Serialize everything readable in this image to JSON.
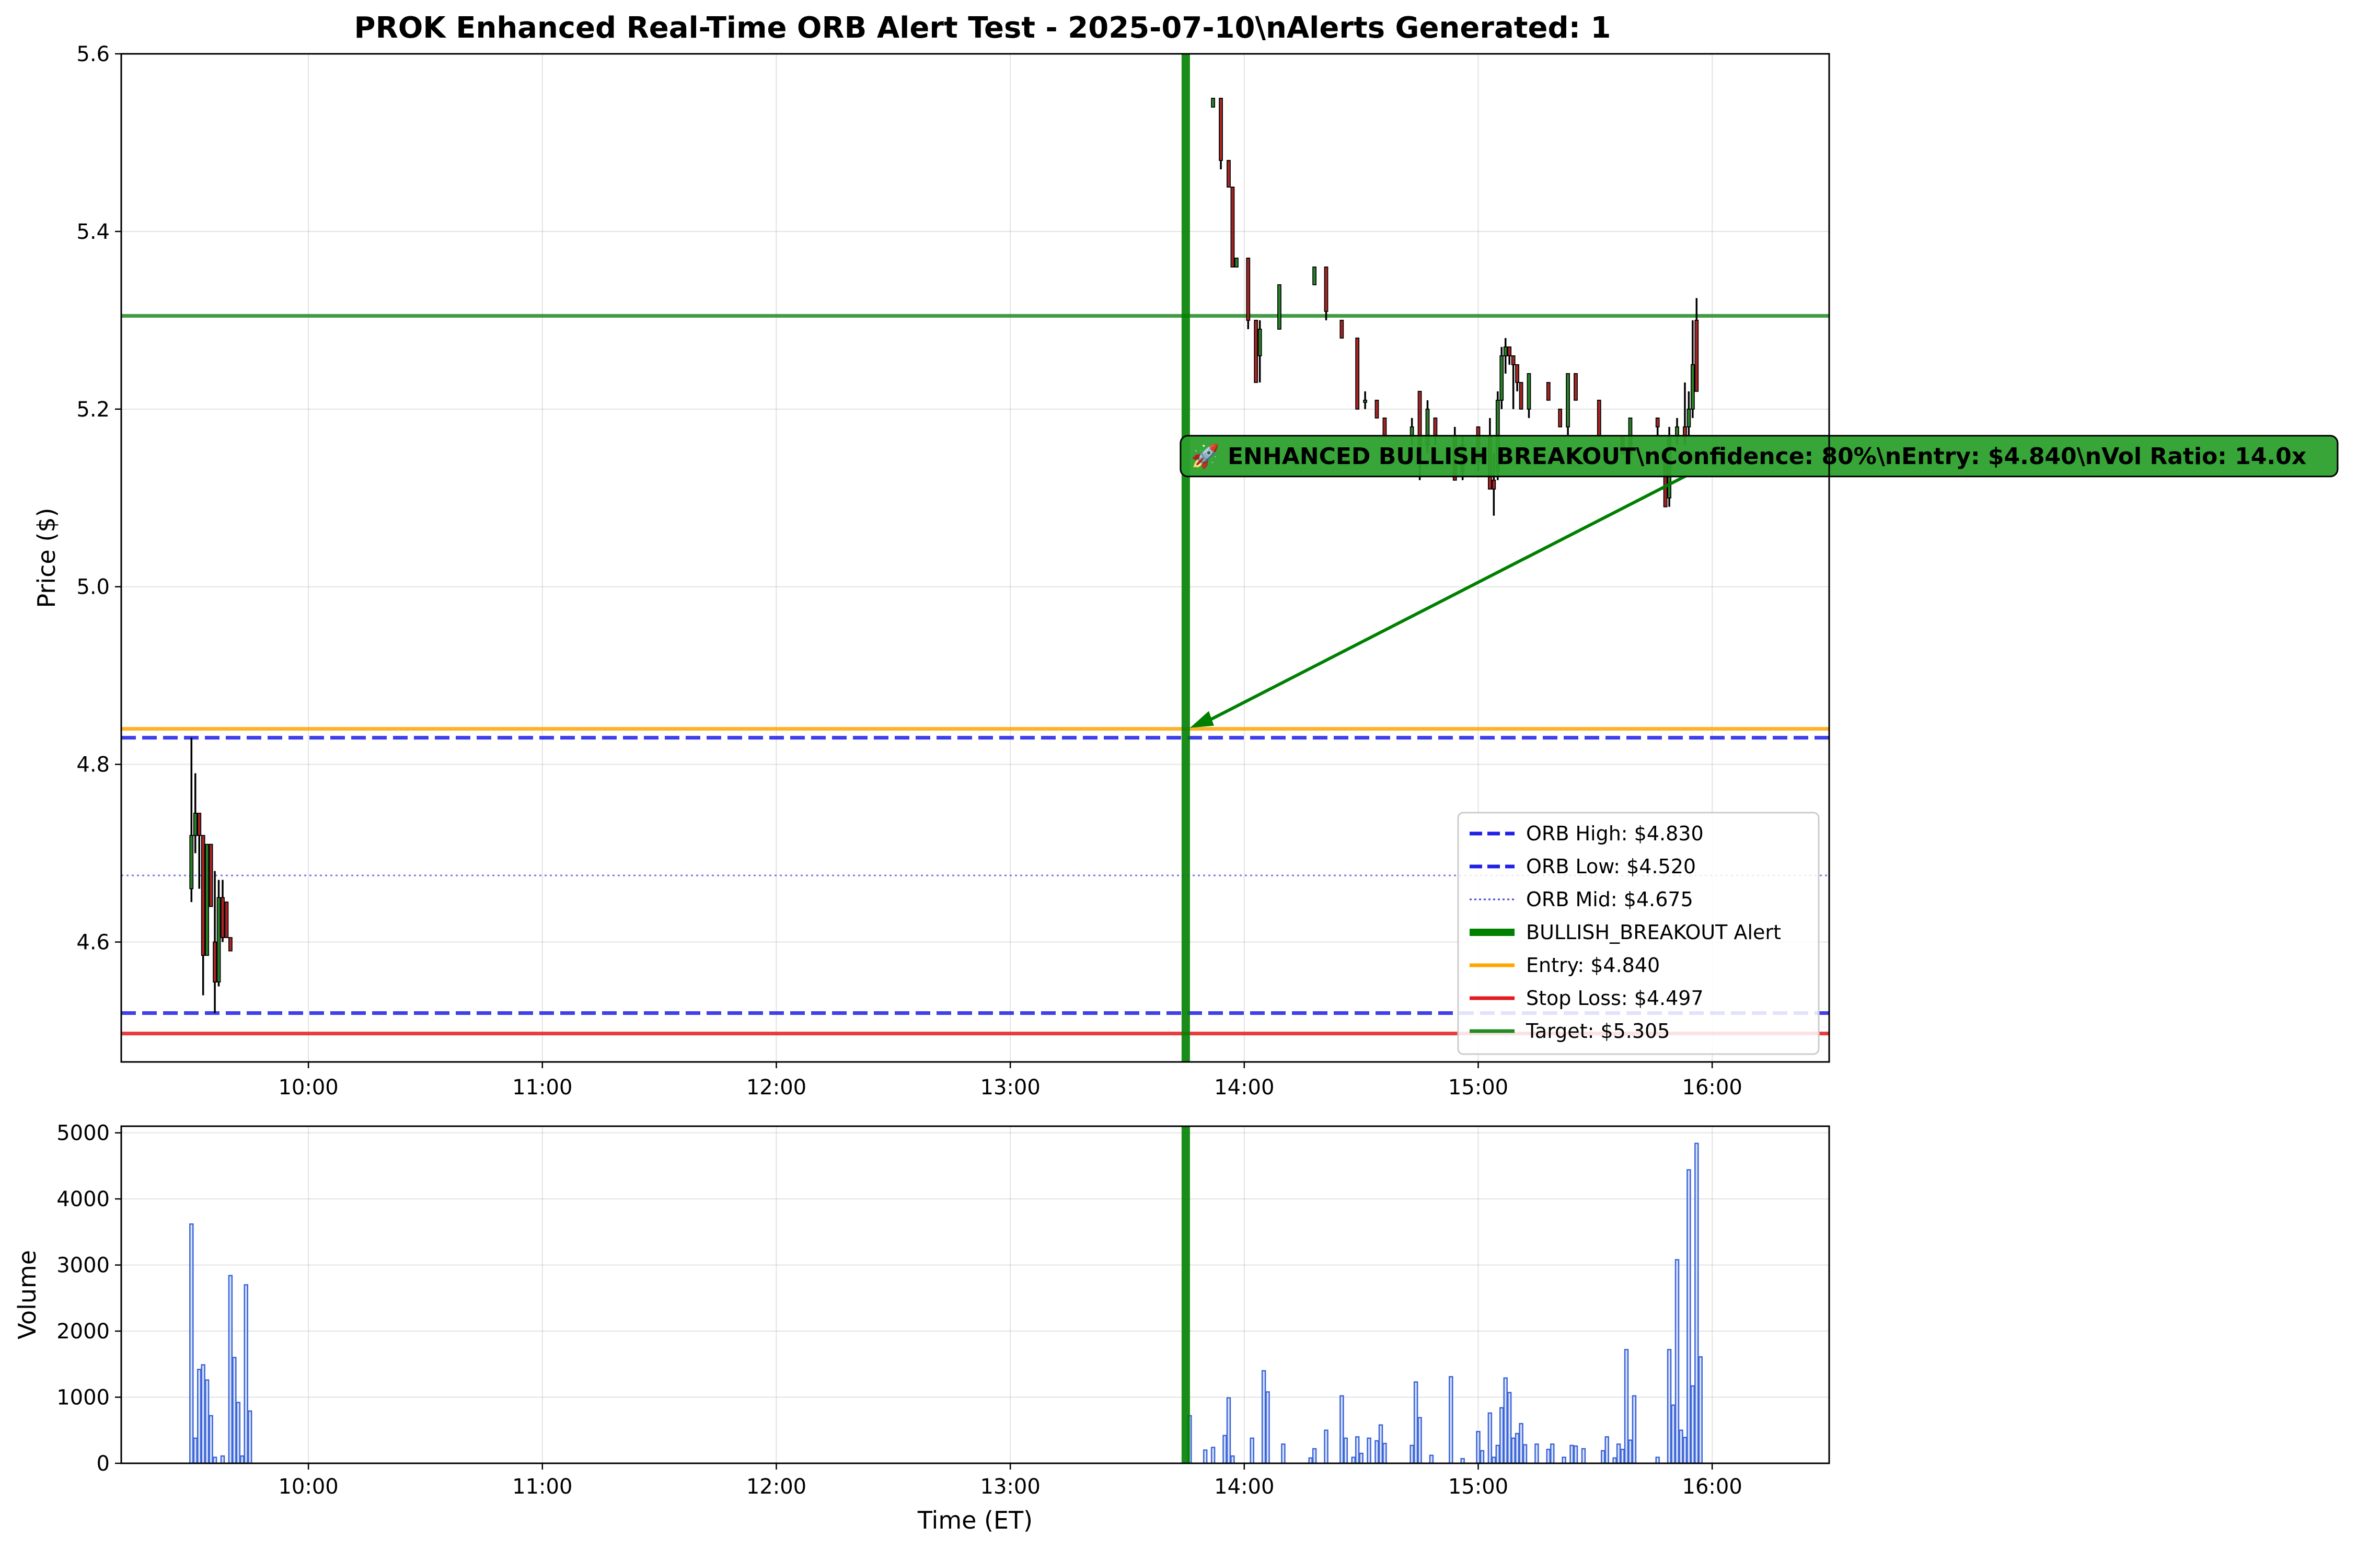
{
  "chart_data": [
    {
      "type": "candlestick",
      "title": "PROK Enhanced Real-Time ORB Alert Test - 2025-07-10\\nAlerts Generated: 1",
      "ylabel": "Price ($)",
      "xlabel": "",
      "ylim": [
        4.465,
        5.6
      ],
      "xlim": [
        "09:12",
        "16:30"
      ],
      "grid": true,
      "x_ticks": [
        "10:00",
        "11:00",
        "12:00",
        "13:00",
        "14:00",
        "15:00",
        "16:00"
      ],
      "y_ticks": [
        "4.6",
        "4.8",
        "5.0",
        "5.2",
        "5.4",
        "5.6"
      ],
      "colors": {
        "up": "#2ca02c",
        "down": "#d62728",
        "orb": "#0000ff",
        "entry": "#ffa500",
        "stop": "#e41a1c",
        "target": "#228b22",
        "alert": "#008000"
      },
      "series": [
        {
          "name": "PROK 1-min",
          "candles": [
            {
              "t": "09:30",
              "o": 4.66,
              "h": 4.83,
              "l": 4.645,
              "c": 4.72
            },
            {
              "t": "09:31",
              "o": 4.72,
              "h": 4.79,
              "l": 4.7,
              "c": 4.745
            },
            {
              "t": "09:32",
              "o": 4.745,
              "h": 4.745,
              "l": 4.66,
              "c": 4.72
            },
            {
              "t": "09:33",
              "o": 4.72,
              "h": 4.72,
              "l": 4.54,
              "c": 4.585
            },
            {
              "t": "09:34",
              "o": 4.585,
              "h": 4.71,
              "l": 4.585,
              "c": 4.71
            },
            {
              "t": "09:35",
              "o": 4.71,
              "h": 4.71,
              "l": 4.64,
              "c": 4.64
            },
            {
              "t": "09:36",
              "o": 4.6,
              "h": 4.68,
              "l": 4.52,
              "c": 4.555
            },
            {
              "t": "09:37",
              "o": 4.555,
              "h": 4.67,
              "l": 4.55,
              "c": 4.65
            },
            {
              "t": "09:38",
              "o": 4.65,
              "h": 4.67,
              "l": 4.6,
              "c": 4.605
            },
            {
              "t": "09:39",
              "o": 4.645,
              "h": 4.645,
              "l": 4.605,
              "c": 4.605
            },
            {
              "t": "09:40",
              "o": 4.605,
              "h": 4.605,
              "l": 4.59,
              "c": 4.59
            },
            {
              "t": "13:52",
              "o": 5.54,
              "h": 5.55,
              "l": 5.54,
              "c": 5.55
            },
            {
              "t": "13:54",
              "o": 5.55,
              "h": 5.55,
              "l": 5.47,
              "c": 5.48
            },
            {
              "t": "13:56",
              "o": 5.48,
              "h": 5.48,
              "l": 5.45,
              "c": 5.45
            },
            {
              "t": "13:57",
              "o": 5.45,
              "h": 5.45,
              "l": 5.36,
              "c": 5.36
            },
            {
              "t": "13:58",
              "o": 5.36,
              "h": 5.37,
              "l": 5.36,
              "c": 5.37
            },
            {
              "t": "14:01",
              "o": 5.37,
              "h": 5.37,
              "l": 5.29,
              "c": 5.3
            },
            {
              "t": "14:03",
              "o": 5.3,
              "h": 5.3,
              "l": 5.23,
              "c": 5.23
            },
            {
              "t": "14:04",
              "o": 5.26,
              "h": 5.3,
              "l": 5.23,
              "c": 5.29
            },
            {
              "t": "14:09",
              "o": 5.29,
              "h": 5.34,
              "l": 5.29,
              "c": 5.34
            },
            {
              "t": "14:18",
              "o": 5.34,
              "h": 5.36,
              "l": 5.34,
              "c": 5.36
            },
            {
              "t": "14:21",
              "o": 5.36,
              "h": 5.36,
              "l": 5.3,
              "c": 5.31
            },
            {
              "t": "14:25",
              "o": 5.3,
              "h": 5.3,
              "l": 5.28,
              "c": 5.28
            },
            {
              "t": "14:29",
              "o": 5.28,
              "h": 5.28,
              "l": 5.2,
              "c": 5.2
            },
            {
              "t": "14:31",
              "o": 5.21,
              "h": 5.22,
              "l": 5.2,
              "c": 5.21
            },
            {
              "t": "14:34",
              "o": 5.21,
              "h": 5.21,
              "l": 5.19,
              "c": 5.19
            },
            {
              "t": "14:36",
              "o": 5.19,
              "h": 5.19,
              "l": 5.17,
              "c": 5.17
            },
            {
              "t": "14:43",
              "o": 5.17,
              "h": 5.19,
              "l": 5.16,
              "c": 5.18
            },
            {
              "t": "14:45",
              "o": 5.22,
              "h": 5.22,
              "l": 5.12,
              "c": 5.14
            },
            {
              "t": "14:47",
              "o": 5.16,
              "h": 5.21,
              "l": 5.15,
              "c": 5.2
            },
            {
              "t": "14:49",
              "o": 5.19,
              "h": 5.19,
              "l": 5.16,
              "c": 5.17
            },
            {
              "t": "14:54",
              "o": 5.17,
              "h": 5.18,
              "l": 5.12,
              "c": 5.12
            },
            {
              "t": "14:56",
              "o": 5.13,
              "h": 5.17,
              "l": 5.12,
              "c": 5.16
            },
            {
              "t": "15:00",
              "o": 5.18,
              "h": 5.18,
              "l": 5.13,
              "c": 5.14
            },
            {
              "t": "15:03",
              "o": 5.17,
              "h": 5.19,
              "l": 5.11,
              "c": 5.11
            },
            {
              "t": "15:04",
              "o": 5.12,
              "h": 5.15,
              "l": 5.08,
              "c": 5.11
            },
            {
              "t": "15:05",
              "o": 5.13,
              "h": 5.22,
              "l": 5.12,
              "c": 5.21
            },
            {
              "t": "15:06",
              "o": 5.21,
              "h": 5.27,
              "l": 5.2,
              "c": 5.26
            },
            {
              "t": "15:07",
              "o": 5.26,
              "h": 5.28,
              "l": 5.24,
              "c": 5.27
            },
            {
              "t": "15:08",
              "o": 5.27,
              "h": 5.27,
              "l": 5.25,
              "c": 5.26
            },
            {
              "t": "15:09",
              "o": 5.26,
              "h": 5.26,
              "l": 5.2,
              "c": 5.25
            },
            {
              "t": "15:10",
              "o": 5.25,
              "h": 5.25,
              "l": 5.22,
              "c": 5.23
            },
            {
              "t": "15:11",
              "o": 5.23,
              "h": 5.23,
              "l": 5.2,
              "c": 5.2
            },
            {
              "t": "15:13",
              "o": 5.2,
              "h": 5.24,
              "l": 5.19,
              "c": 5.24
            },
            {
              "t": "15:18",
              "o": 5.23,
              "h": 5.23,
              "l": 5.21,
              "c": 5.21
            },
            {
              "t": "15:21",
              "o": 5.2,
              "h": 5.2,
              "l": 5.18,
              "c": 5.18
            },
            {
              "t": "15:23",
              "o": 5.18,
              "h": 5.24,
              "l": 5.17,
              "c": 5.24
            },
            {
              "t": "15:25",
              "o": 5.24,
              "h": 5.24,
              "l": 5.21,
              "c": 5.21
            },
            {
              "t": "15:31",
              "o": 5.21,
              "h": 5.21,
              "l": 5.17,
              "c": 5.17
            },
            {
              "t": "15:37",
              "o": 5.17,
              "h": 5.17,
              "l": 5.15,
              "c": 5.15
            },
            {
              "t": "15:39",
              "o": 5.15,
              "h": 5.19,
              "l": 5.15,
              "c": 5.19
            },
            {
              "t": "15:46",
              "o": 5.19,
              "h": 5.19,
              "l": 5.17,
              "c": 5.18
            },
            {
              "t": "15:48",
              "o": 5.14,
              "h": 5.14,
              "l": 5.09,
              "c": 5.09
            },
            {
              "t": "15:49",
              "o": 5.1,
              "h": 5.18,
              "l": 5.09,
              "c": 5.17
            },
            {
              "t": "15:51",
              "o": 5.17,
              "h": 5.19,
              "l": 5.16,
              "c": 5.18
            },
            {
              "t": "15:53",
              "o": 5.18,
              "h": 5.23,
              "l": 5.16,
              "c": 5.17
            },
            {
              "t": "15:54",
              "o": 5.18,
              "h": 5.22,
              "l": 5.17,
              "c": 5.2
            },
            {
              "t": "15:55",
              "o": 5.2,
              "h": 5.3,
              "l": 5.19,
              "c": 5.25
            },
            {
              "t": "15:56",
              "o": 5.3,
              "h": 5.325,
              "l": 5.22,
              "c": 5.22
            }
          ]
        }
      ],
      "reference_lines": [
        {
          "name": "ORB High: $4.830",
          "value": 4.83,
          "style": "dashed",
          "color": "#1f1fe6"
        },
        {
          "name": "ORB Low: $4.520",
          "value": 4.52,
          "style": "dashed",
          "color": "#1f1fe6"
        },
        {
          "name": "ORB Mid: $4.675",
          "value": 4.675,
          "style": "dotted",
          "color": "#4646d6"
        },
        {
          "name": "Entry: $4.840",
          "value": 4.84,
          "style": "solid",
          "color": "#ffa500"
        },
        {
          "name": "Stop Loss: $4.497",
          "value": 4.497,
          "style": "solid",
          "color": "#e41a1c"
        },
        {
          "name": "Target: $5.305",
          "value": 5.305,
          "style": "solid",
          "color": "#228b22"
        }
      ],
      "alert_line": {
        "name": "BULLISH_BREAKOUT Alert",
        "t": "13:45",
        "color": "#008000"
      },
      "annotation": {
        "text": "🚀 ENHANCED BULLISH BREAKOUT\\nConfidence: 80%\\nEntry: $4.840\\nVol Ratio: 14.0x",
        "point": {
          "t": "13:45",
          "value": 4.84
        },
        "text_anchor": {
          "t": "15:56",
          "value": 5.125
        }
      },
      "legend": {
        "position": "lower-right",
        "entries": [
          "ORB High: $4.830",
          "ORB Low: $4.520",
          "ORB Mid: $4.675",
          "BULLISH_BREAKOUT Alert",
          "Entry: $4.840",
          "Stop Loss: $4.497",
          "Target: $5.305"
        ]
      }
    },
    {
      "type": "bar",
      "xlabel": "Time (ET)",
      "ylabel": "Volume",
      "ylim": [
        0,
        5100
      ],
      "grid": true,
      "x_ticks": [
        "10:00",
        "11:00",
        "12:00",
        "13:00",
        "14:00",
        "15:00",
        "16:00"
      ],
      "y_ticks": [
        "0",
        "1000",
        "2000",
        "3000",
        "4000",
        "5000"
      ],
      "colors": {
        "bar_fill": "#c6d4f5",
        "bar_edge": "#3b64d8",
        "alert": "#008000"
      },
      "series": [
        {
          "name": "Volume",
          "points": [
            {
              "t": "09:30",
              "v": 3620
            },
            {
              "t": "09:31",
              "v": 380
            },
            {
              "t": "09:32",
              "v": 1420
            },
            {
              "t": "09:33",
              "v": 1490
            },
            {
              "t": "09:34",
              "v": 1260
            },
            {
              "t": "09:35",
              "v": 720
            },
            {
              "t": "09:36",
              "v": 90
            },
            {
              "t": "09:38",
              "v": 110
            },
            {
              "t": "09:40",
              "v": 2840
            },
            {
              "t": "09:41",
              "v": 1600
            },
            {
              "t": "09:42",
              "v": 920
            },
            {
              "t": "09:43",
              "v": 110
            },
            {
              "t": "09:44",
              "v": 2700
            },
            {
              "t": "09:45",
              "v": 790
            },
            {
              "t": "13:46",
              "v": 720
            },
            {
              "t": "13:50",
              "v": 200
            },
            {
              "t": "13:52",
              "v": 240
            },
            {
              "t": "13:55",
              "v": 420
            },
            {
              "t": "13:56",
              "v": 990
            },
            {
              "t": "13:57",
              "v": 110
            },
            {
              "t": "14:02",
              "v": 380
            },
            {
              "t": "14:05",
              "v": 1400
            },
            {
              "t": "14:06",
              "v": 1080
            },
            {
              "t": "14:10",
              "v": 290
            },
            {
              "t": "14:17",
              "v": 80
            },
            {
              "t": "14:18",
              "v": 220
            },
            {
              "t": "14:21",
              "v": 500
            },
            {
              "t": "14:25",
              "v": 1020
            },
            {
              "t": "14:26",
              "v": 380
            },
            {
              "t": "14:28",
              "v": 90
            },
            {
              "t": "14:29",
              "v": 400
            },
            {
              "t": "14:30",
              "v": 150
            },
            {
              "t": "14:32",
              "v": 380
            },
            {
              "t": "14:34",
              "v": 340
            },
            {
              "t": "14:35",
              "v": 580
            },
            {
              "t": "14:36",
              "v": 300
            },
            {
              "t": "14:43",
              "v": 270
            },
            {
              "t": "14:44",
              "v": 1230
            },
            {
              "t": "14:45",
              "v": 690
            },
            {
              "t": "14:48",
              "v": 120
            },
            {
              "t": "14:53",
              "v": 1310
            },
            {
              "t": "14:56",
              "v": 70
            },
            {
              "t": "15:00",
              "v": 480
            },
            {
              "t": "15:01",
              "v": 190
            },
            {
              "t": "15:03",
              "v": 760
            },
            {
              "t": "15:04",
              "v": 90
            },
            {
              "t": "15:05",
              "v": 270
            },
            {
              "t": "15:06",
              "v": 840
            },
            {
              "t": "15:07",
              "v": 1290
            },
            {
              "t": "15:08",
              "v": 1070
            },
            {
              "t": "15:09",
              "v": 380
            },
            {
              "t": "15:10",
              "v": 450
            },
            {
              "t": "15:11",
              "v": 600
            },
            {
              "t": "15:12",
              "v": 280
            },
            {
              "t": "15:15",
              "v": 290
            },
            {
              "t": "15:18",
              "v": 210
            },
            {
              "t": "15:19",
              "v": 290
            },
            {
              "t": "15:22",
              "v": 90
            },
            {
              "t": "15:24",
              "v": 270
            },
            {
              "t": "15:25",
              "v": 260
            },
            {
              "t": "15:27",
              "v": 220
            },
            {
              "t": "15:32",
              "v": 190
            },
            {
              "t": "15:33",
              "v": 400
            },
            {
              "t": "15:35",
              "v": 80
            },
            {
              "t": "15:36",
              "v": 290
            },
            {
              "t": "15:37",
              "v": 210
            },
            {
              "t": "15:38",
              "v": 1720
            },
            {
              "t": "15:39",
              "v": 350
            },
            {
              "t": "15:40",
              "v": 1020
            },
            {
              "t": "15:46",
              "v": 90
            },
            {
              "t": "15:49",
              "v": 1720
            },
            {
              "t": "15:50",
              "v": 880
            },
            {
              "t": "15:51",
              "v": 3080
            },
            {
              "t": "15:52",
              "v": 500
            },
            {
              "t": "15:53",
              "v": 390
            },
            {
              "t": "15:54",
              "v": 4440
            },
            {
              "t": "15:55",
              "v": 1170
            },
            {
              "t": "15:56",
              "v": 4840
            },
            {
              "t": "15:57",
              "v": 1610
            }
          ]
        }
      ],
      "alert_line": {
        "t": "13:45",
        "color": "#008000"
      }
    }
  ]
}
